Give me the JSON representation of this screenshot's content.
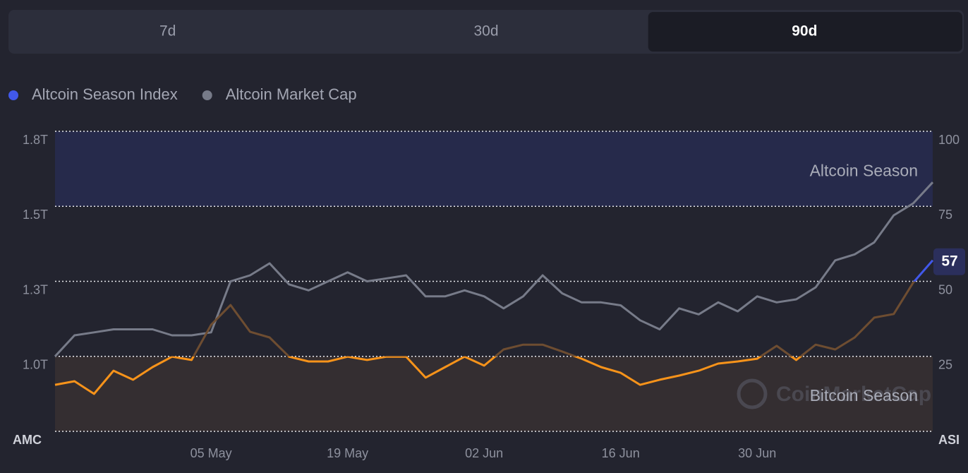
{
  "tabs": {
    "items": [
      "7d",
      "30d",
      "90d"
    ],
    "active": 2
  },
  "chart_data": {
    "type": "line",
    "watermark": "CoinMarketCap",
    "y_label": "AMC",
    "y2_label": "ASI",
    "categories": [
      null,
      null,
      null,
      null,
      null,
      null,
      null,
      null,
      "05 May",
      null,
      null,
      null,
      null,
      null,
      null,
      "19 May",
      null,
      null,
      null,
      null,
      null,
      null,
      "02 Jun",
      null,
      null,
      null,
      null,
      null,
      null,
      "16 Jun",
      null,
      null,
      null,
      null,
      null,
      null,
      "30 Jun",
      null,
      null,
      null,
      null,
      null,
      null,
      null,
      null,
      null
    ],
    "series": [
      {
        "name": "Altcoin Season Index",
        "color": "#4158ea",
        "axis": "y2",
        "values": [
          15.5,
          16.7,
          12.5,
          20.2,
          17.2,
          21.4,
          24.9,
          23.8,
          35.5,
          42.1,
          33.2,
          31.3,
          24.9,
          23.3,
          23.3,
          24.9,
          23.8,
          24.9,
          24.9,
          17.9,
          21.4,
          24.9,
          21.9,
          27.3,
          28.9,
          28.9,
          26.6,
          24.2,
          21.4,
          19.5,
          15.5,
          17.2,
          18.6,
          20.2,
          22.6,
          23.3,
          24.2,
          28.5,
          23.8,
          28.9,
          27.3,
          31.3,
          37.9,
          39.1,
          49.6,
          57
        ]
      },
      {
        "name": "Altcoin Market Cap",
        "color": "#777b89",
        "values": [
          1.0,
          1.07,
          1.08,
          1.09,
          1.09,
          1.09,
          1.07,
          1.07,
          1.08,
          1.25,
          1.27,
          1.31,
          1.24,
          1.22,
          1.25,
          1.28,
          1.25,
          1.26,
          1.27,
          1.2,
          1.2,
          1.22,
          1.2,
          1.16,
          1.2,
          1.27,
          1.21,
          1.18,
          1.18,
          1.17,
          1.12,
          1.09,
          1.16,
          1.14,
          1.18,
          1.15,
          1.2,
          1.18,
          1.19,
          1.23,
          1.32,
          1.34,
          1.38,
          1.47,
          1.51,
          1.58
        ]
      }
    ],
    "ylim": [
      0.75,
      1.75
    ],
    "yticks": [
      {
        "value": 1.0,
        "label": "1.0T"
      },
      {
        "value": 1.25,
        "label": "1.3T"
      },
      {
        "value": 1.5,
        "label": "1.5T"
      },
      {
        "value": 1.75,
        "label": "1.8T"
      }
    ],
    "y2lim": [
      0,
      100
    ],
    "y2ticks": [
      25,
      50,
      75,
      100
    ],
    "grid": true,
    "bands": [
      {
        "label": "Altcoin Season",
        "range": [
          75,
          100
        ],
        "fill": "#262a4b",
        "line": "#4158ea"
      },
      {
        "label": "Bitcoin Season",
        "range": [
          0,
          25
        ],
        "fill": "#342e31",
        "line": "#f7931a"
      }
    ],
    "dim_line": "#6e4d31"
  }
}
